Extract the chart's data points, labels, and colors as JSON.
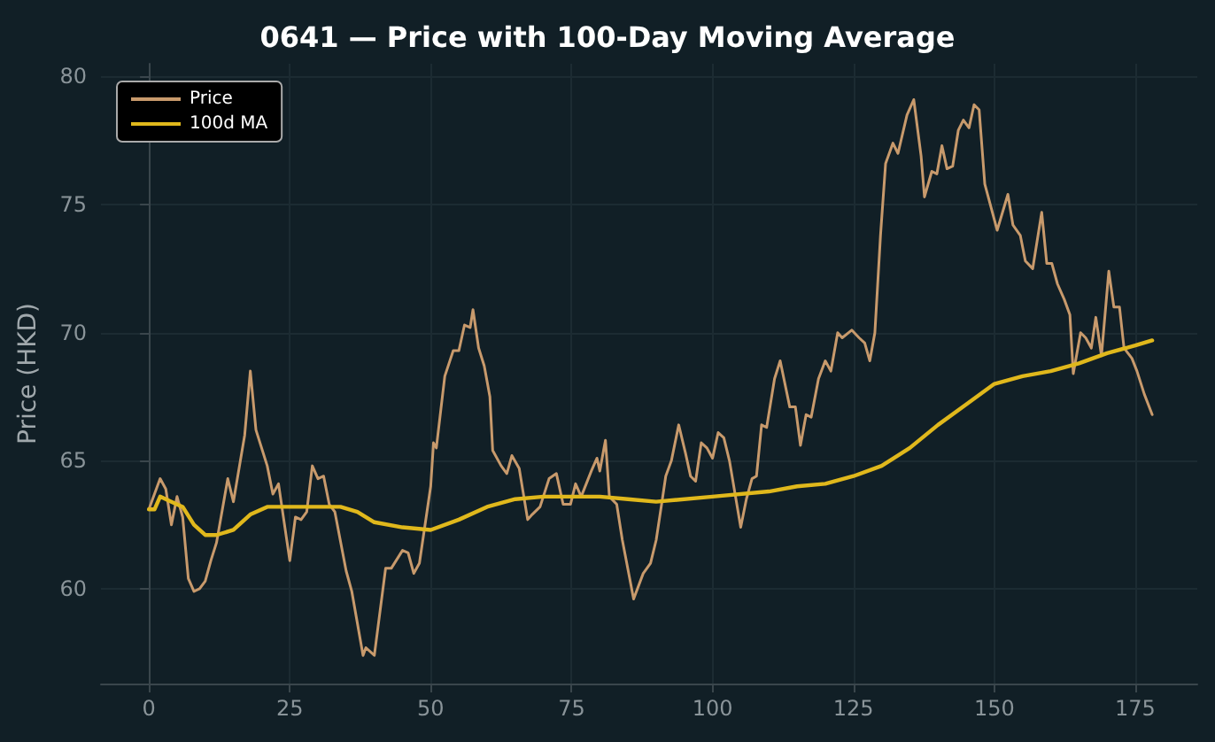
{
  "chart_data": {
    "type": "line",
    "title": "0641 — Price with 100-Day Moving Average",
    "ylabel": "Price (HKD)",
    "xlim": [
      -8.5,
      186
    ],
    "xticks": [
      0,
      25,
      50,
      75,
      100,
      125,
      150,
      175
    ],
    "ylim": [
      56.3,
      80.5
    ],
    "yticks": [
      60,
      65,
      70,
      75,
      80
    ],
    "grid": true,
    "legend": "top left",
    "marker": "none",
    "line_style": "solid",
    "series": [
      {
        "name": "Price",
        "color": "#c89a6c",
        "x": [
          0,
          2,
          3,
          4,
          5,
          6,
          7,
          8,
          9,
          10,
          11,
          12,
          14,
          15,
          17,
          18,
          19,
          21,
          22,
          23,
          25,
          26,
          27,
          28,
          29,
          30,
          31,
          32,
          33,
          35,
          36,
          38,
          38.5,
          40,
          42,
          43,
          45,
          46,
          47,
          48,
          50,
          50.5,
          51,
          52.5,
          54,
          55,
          56,
          57,
          57.5,
          58.5,
          59.5,
          60.5,
          61,
          62.5,
          63.5,
          64.4,
          65.7,
          67.2,
          68,
          69.4,
          71,
          72.3,
          73.5,
          74.8,
          75.7,
          76.7,
          78.5,
          79.5,
          80,
          81,
          81.7,
          83,
          84,
          86,
          87.7,
          89,
          90,
          91.1,
          91.7,
          92.7,
          94,
          95.2,
          96.1,
          97,
          98,
          99,
          100,
          101,
          102,
          103,
          105,
          106,
          107,
          107.8,
          108.7,
          109.6,
          111,
          112,
          113.7,
          114.7,
          115.6,
          116.6,
          117.5,
          118.8,
          120,
          121,
          122.2,
          123,
          124.7,
          126,
          127,
          127.9,
          128.8,
          129.8,
          130.7,
          132,
          132.9,
          134.5,
          135.7,
          137,
          137.6,
          138.9,
          139.8,
          140.7,
          141.6,
          142.6,
          143.6,
          144.5,
          145.5,
          146.4,
          147.3,
          148.3,
          150.5,
          152.4,
          153.3,
          154.6,
          155.5,
          156.8,
          158.4,
          159.3,
          160.2,
          161.2,
          162.4,
          163.4,
          164,
          165.3,
          166.2,
          167.2,
          168,
          169,
          170.3,
          171.2,
          172.2,
          173,
          174.4,
          175.3,
          176.6,
          178
        ],
        "values": [
          63.1,
          64.3,
          63.9,
          62.5,
          63.6,
          62.8,
          60.4,
          59.9,
          60.0,
          60.3,
          61.1,
          61.8,
          64.3,
          63.4,
          66.0,
          68.5,
          66.2,
          64.8,
          63.7,
          64.1,
          61.1,
          62.8,
          62.7,
          63.0,
          64.8,
          64.3,
          64.4,
          63.3,
          63.0,
          60.7,
          59.9,
          57.4,
          57.7,
          57.4,
          60.8,
          60.8,
          61.5,
          61.4,
          60.6,
          61.0,
          64.0,
          65.7,
          65.5,
          68.3,
          69.3,
          69.3,
          70.3,
          70.2,
          70.9,
          69.4,
          68.7,
          67.5,
          65.4,
          64.8,
          64.5,
          65.2,
          64.7,
          62.7,
          62.9,
          63.2,
          64.3,
          64.5,
          63.3,
          63.3,
          64.1,
          63.6,
          64.6,
          65.1,
          64.6,
          65.8,
          63.6,
          63.3,
          61.9,
          59.6,
          60.6,
          61.0,
          61.9,
          63.5,
          64.4,
          65.0,
          66.4,
          65.3,
          64.4,
          64.2,
          65.7,
          65.5,
          65.1,
          66.1,
          65.9,
          65.0,
          62.4,
          63.5,
          64.3,
          64.4,
          66.4,
          66.3,
          68.2,
          68.9,
          67.1,
          67.1,
          65.6,
          66.8,
          66.7,
          68.2,
          68.9,
          68.5,
          70.0,
          69.8,
          70.1,
          69.8,
          69.6,
          68.9,
          70.0,
          73.8,
          76.6,
          77.4,
          77.0,
          78.5,
          79.1,
          76.9,
          75.3,
          76.3,
          76.2,
          77.3,
          76.4,
          76.5,
          77.9,
          78.3,
          78.0,
          78.9,
          78.7,
          75.8,
          74.0,
          75.4,
          74.2,
          73.8,
          72.8,
          72.5,
          74.7,
          72.7,
          72.7,
          71.9,
          71.3,
          70.7,
          68.4,
          70.0,
          69.8,
          69.4,
          70.6,
          69.1,
          72.4,
          71.0,
          71.0,
          69.4,
          69.0,
          68.5,
          67.6,
          66.8
        ]
      },
      {
        "name": "100d MA",
        "color": "#e0b81c",
        "x": [
          0,
          1,
          2,
          4,
          6,
          8,
          10,
          12,
          15,
          18,
          21,
          25,
          30,
          34,
          37,
          40,
          45,
          50,
          55,
          60,
          65,
          70,
          80,
          85,
          90,
          100,
          110,
          115,
          120,
          125,
          130,
          135,
          140,
          145,
          150,
          155,
          160,
          165,
          170,
          175,
          178
        ],
        "values": [
          63.1,
          63.1,
          63.6,
          63.4,
          63.2,
          62.5,
          62.1,
          62.1,
          62.3,
          62.9,
          63.2,
          63.2,
          63.2,
          63.2,
          63.0,
          62.6,
          62.4,
          62.3,
          62.7,
          63.2,
          63.5,
          63.6,
          63.6,
          63.5,
          63.4,
          63.6,
          63.8,
          64.0,
          64.1,
          64.4,
          64.8,
          65.5,
          66.4,
          67.2,
          68.0,
          68.3,
          68.5,
          68.8,
          69.2,
          69.5,
          69.7
        ]
      }
    ]
  }
}
